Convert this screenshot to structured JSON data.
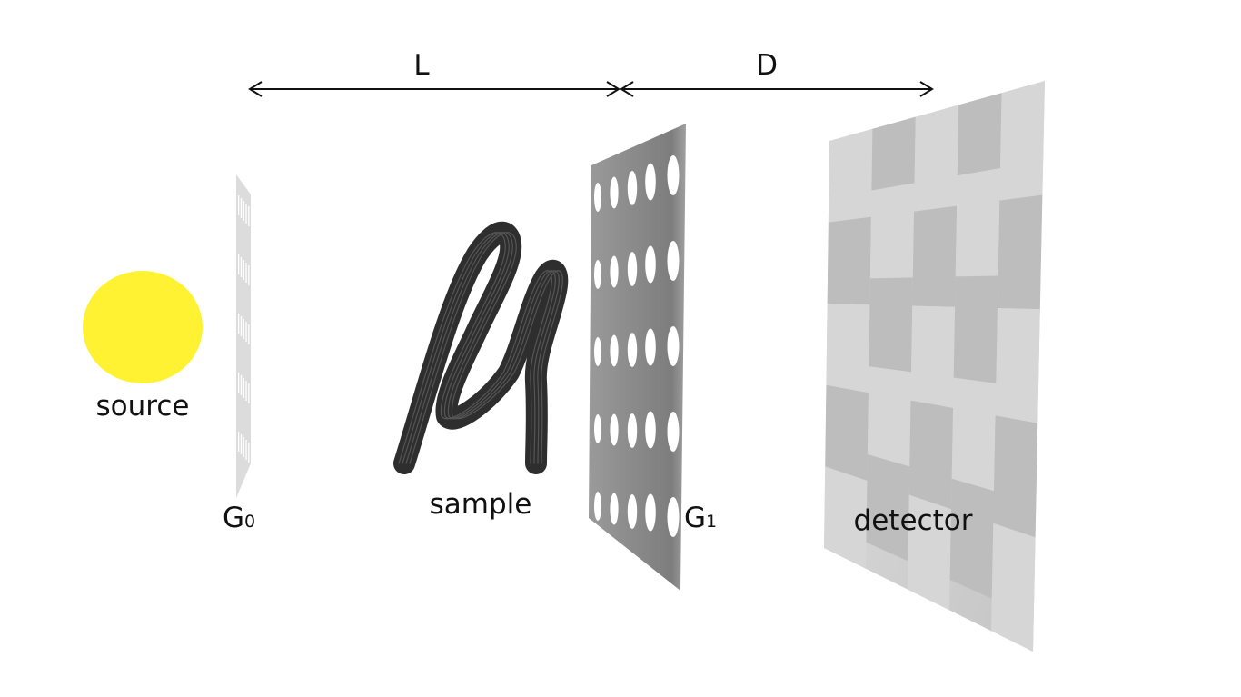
{
  "labels": {
    "distance_l": "L",
    "distance_d": "D",
    "source": "source",
    "g0_main": "G",
    "g0_sub": "0",
    "sample": "sample",
    "g1_main": "G",
    "g1_sub": "1",
    "detector": "detector"
  },
  "colors": {
    "source": "#fff233",
    "g0_grating": "#d9d9d9",
    "g1_grating": "#8c8c8c",
    "sample": "#3a3a3a",
    "detector_light": "#d6d6d6",
    "detector_dark": "#bdbdbd",
    "arrow": "#111111"
  },
  "components": [
    "source",
    "G0 grating",
    "sample",
    "G1 grating",
    "detector"
  ]
}
